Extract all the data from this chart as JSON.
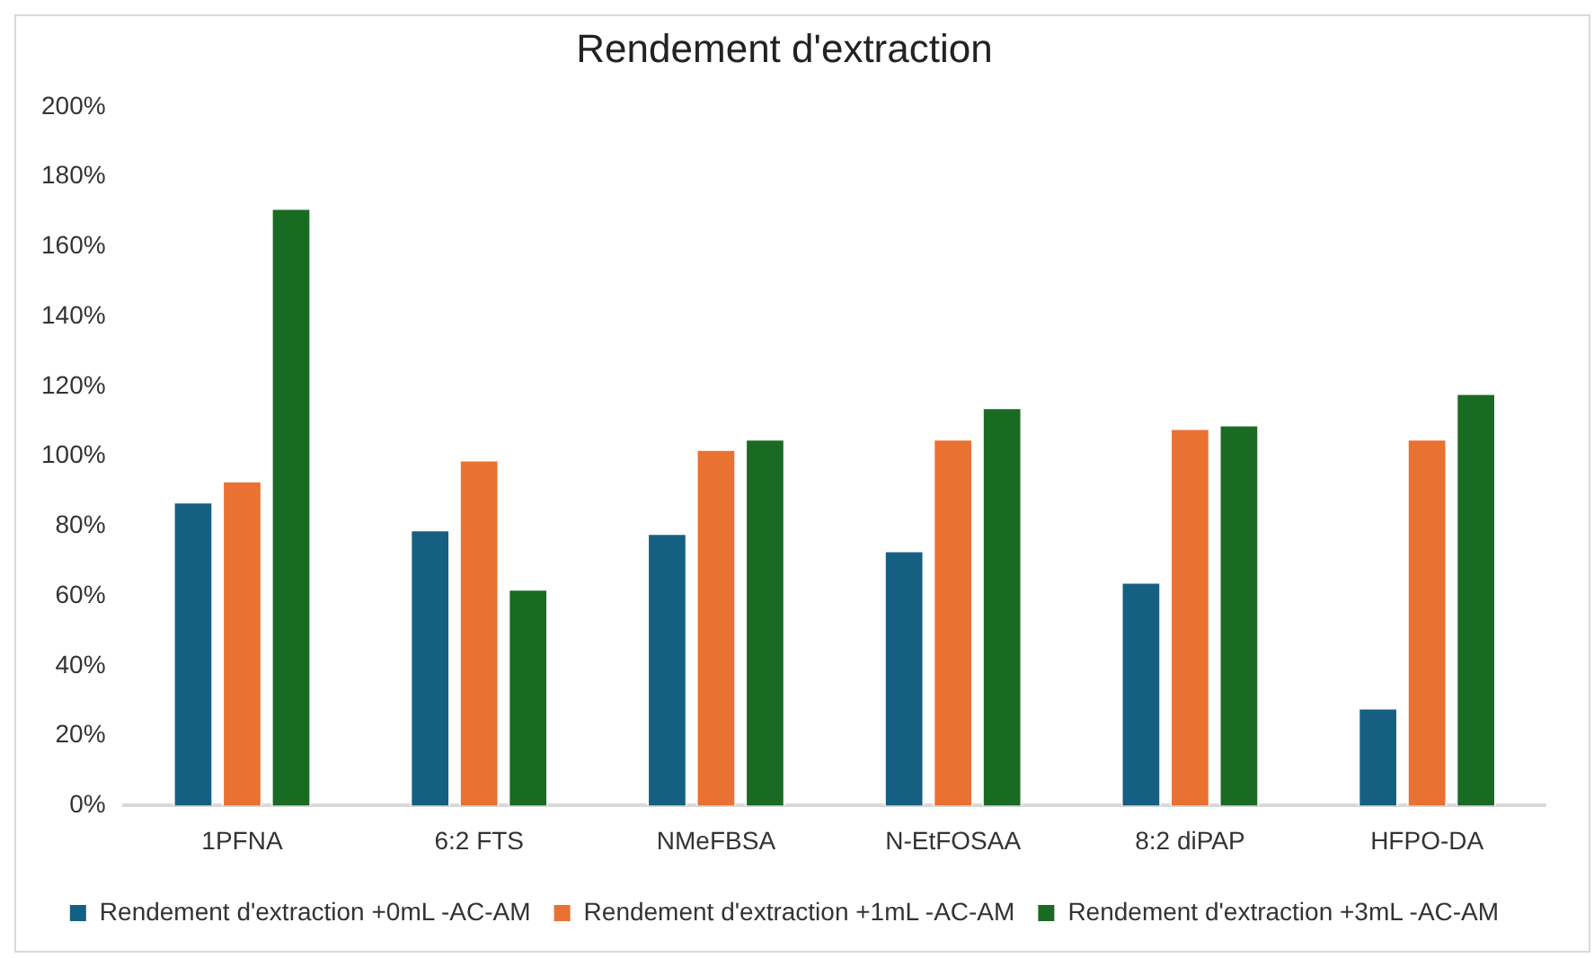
{
  "chart_data": {
    "type": "bar",
    "title": "Rendement d'extraction",
    "categories": [
      "1PFNA",
      "6:2 FTS",
      "NMeFBSA",
      "N-EtFOSAA",
      "8:2 diPAP",
      "HFPO-DA"
    ],
    "series": [
      {
        "name": "Rendement d'extraction +0mL -AC-AM",
        "color": "#156082",
        "values": [
          87,
          79,
          78,
          73,
          64,
          28
        ]
      },
      {
        "name": "Rendement d'extraction +1mL -AC-AM",
        "color": "#e97132",
        "values": [
          93,
          99,
          102,
          105,
          108,
          105
        ]
      },
      {
        "name": "Rendement d'extraction +3mL -AC-AM",
        "color": "#196b24",
        "values": [
          171,
          62,
          105,
          114,
          109,
          118
        ]
      }
    ],
    "ylim": [
      0,
      200
    ],
    "yticks": [
      {
        "value": 0,
        "label": "0%"
      },
      {
        "value": 20,
        "label": "20%"
      },
      {
        "value": 40,
        "label": "40%"
      },
      {
        "value": 60,
        "label": "60%"
      },
      {
        "value": 80,
        "label": "80%"
      },
      {
        "value": 100,
        "label": "100%"
      },
      {
        "value": 120,
        "label": "120%"
      },
      {
        "value": 140,
        "label": "140%"
      },
      {
        "value": 160,
        "label": "160%"
      },
      {
        "value": 180,
        "label": "180%"
      },
      {
        "value": 200,
        "label": "200%"
      }
    ],
    "grid": false,
    "legend": "bottom"
  }
}
